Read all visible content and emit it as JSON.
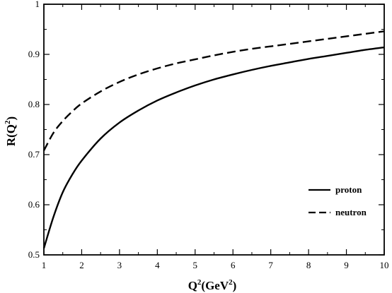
{
  "chart_data": {
    "type": "line",
    "xlabel": {
      "base": "Q",
      "sup1": "2",
      "mid": "(GeV",
      "sup2": "2",
      "end": ")"
    },
    "ylabel": {
      "base": "R(Q",
      "sup": "2",
      "end": ")"
    },
    "xlim": [
      1,
      10
    ],
    "ylim": [
      0.5,
      1.0
    ],
    "xticks": [
      1,
      2,
      3,
      4,
      5,
      6,
      7,
      8,
      9,
      10
    ],
    "yticks": [
      0.5,
      0.6,
      0.7,
      0.8,
      0.9,
      1.0
    ],
    "xtick_labels": [
      "1",
      "2",
      "3",
      "4",
      "5",
      "6",
      "7",
      "8",
      "9",
      "10"
    ],
    "ytick_labels": [
      "0.5",
      "0.6",
      "0.7",
      "0.8",
      "0.9",
      "1"
    ],
    "grid": false,
    "legend_position": "bottom-right",
    "series": [
      {
        "name": "proton",
        "style": "solid",
        "color": "#000000",
        "x": [
          1.0,
          1.25,
          1.5,
          1.75,
          2.0,
          2.5,
          3.0,
          3.5,
          4.0,
          4.5,
          5.0,
          5.5,
          6.0,
          6.5,
          7.0,
          7.5,
          8.0,
          8.5,
          9.0,
          9.5,
          10.0
        ],
        "y": [
          0.513,
          0.575,
          0.625,
          0.66,
          0.688,
          0.732,
          0.764,
          0.788,
          0.808,
          0.824,
          0.838,
          0.85,
          0.86,
          0.869,
          0.877,
          0.884,
          0.891,
          0.897,
          0.903,
          0.909,
          0.914
        ]
      },
      {
        "name": "neutron",
        "style": "dashed",
        "color": "#000000",
        "x": [
          1.0,
          1.25,
          1.5,
          1.75,
          2.0,
          2.5,
          3.0,
          3.5,
          4.0,
          4.5,
          5.0,
          5.5,
          6.0,
          6.5,
          7.0,
          7.5,
          8.0,
          8.5,
          9.0,
          9.5,
          10.0
        ],
        "y": [
          0.708,
          0.743,
          0.767,
          0.786,
          0.802,
          0.826,
          0.845,
          0.86,
          0.872,
          0.882,
          0.89,
          0.898,
          0.905,
          0.911,
          0.916,
          0.921,
          0.926,
          0.931,
          0.936,
          0.941,
          0.946
        ]
      }
    ]
  }
}
